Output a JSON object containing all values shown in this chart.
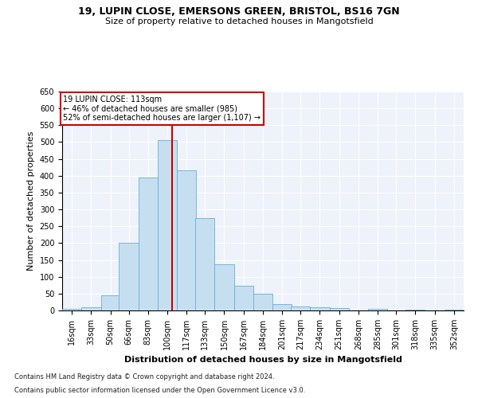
{
  "title1": "19, LUPIN CLOSE, EMERSONS GREEN, BRISTOL, BS16 7GN",
  "title2": "Size of property relative to detached houses in Mangotsfield",
  "xlabel": "Distribution of detached houses by size in Mangotsfield",
  "ylabel": "Number of detached properties",
  "footer1": "Contains HM Land Registry data © Crown copyright and database right 2024.",
  "footer2": "Contains public sector information licensed under the Open Government Licence v3.0.",
  "annotation_line1": "19 LUPIN CLOSE: 113sqm",
  "annotation_line2": "← 46% of detached houses are smaller (985)",
  "annotation_line3": "52% of semi-detached houses are larger (1,107) →",
  "property_size": 113,
  "bar_color": "#c5dff0",
  "bar_edge_color": "#6aaed6",
  "vline_color": "#cc0000",
  "background_color": "#eef2fa",
  "categories": [
    "16sqm",
    "33sqm",
    "50sqm",
    "66sqm",
    "83sqm",
    "100sqm",
    "117sqm",
    "133sqm",
    "150sqm",
    "167sqm",
    "184sqm",
    "201sqm",
    "217sqm",
    "234sqm",
    "251sqm",
    "268sqm",
    "285sqm",
    "301sqm",
    "318sqm",
    "335sqm",
    "352sqm"
  ],
  "bin_edges": [
    16,
    33,
    50,
    66,
    83,
    100,
    117,
    133,
    150,
    167,
    184,
    201,
    217,
    234,
    251,
    268,
    285,
    301,
    318,
    335,
    352
  ],
  "bin_width": 17,
  "values": [
    5,
    10,
    45,
    200,
    395,
    505,
    415,
    275,
    138,
    73,
    50,
    20,
    13,
    9,
    7,
    0,
    5,
    0,
    3,
    0,
    2
  ],
  "ylim": [
    0,
    650
  ],
  "yticks": [
    0,
    50,
    100,
    150,
    200,
    250,
    300,
    350,
    400,
    450,
    500,
    550,
    600,
    650
  ],
  "title1_fontsize": 9,
  "title2_fontsize": 8,
  "ylabel_fontsize": 8,
  "xlabel_fontsize": 8,
  "tick_fontsize": 7,
  "footer_fontsize": 6,
  "ann_fontsize": 7
}
